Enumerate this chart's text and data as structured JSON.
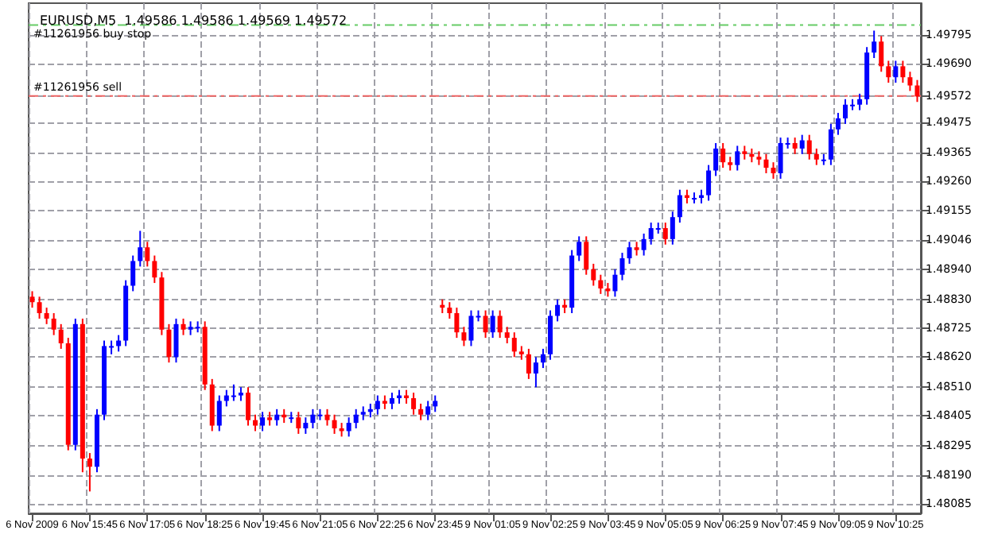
{
  "chart_data": {
    "type": "candlestick",
    "title": "EURUSD,M5  1.49586 1.49586 1.49569 1.49572",
    "categories": [
      "6 Nov 2009",
      null,
      null,
      null,
      null,
      null,
      null,
      null,
      "6 Nov 15:45",
      null,
      null,
      null,
      null,
      null,
      null,
      null,
      "6 Nov 17:05",
      null,
      null,
      null,
      null,
      null,
      null,
      null,
      "6 Nov 18:25",
      null,
      null,
      null,
      null,
      null,
      null,
      null,
      "6 Nov 19:45",
      null,
      null,
      null,
      null,
      null,
      null,
      null,
      "6 Nov 21:05",
      null,
      null,
      null,
      null,
      null,
      null,
      null,
      "6 Nov 22:25",
      null,
      null,
      null,
      null,
      null,
      null,
      null,
      "6 Nov 23:45",
      null,
      null,
      null,
      null,
      null,
      null,
      null,
      "9 Nov 01:05",
      null,
      null,
      null,
      null,
      null,
      null,
      null,
      "9 Nov 02:25",
      null,
      null,
      null,
      null,
      null,
      null,
      null,
      "9 Nov 03:45",
      null,
      null,
      null,
      null,
      null,
      null,
      null,
      "9 Nov 05:05",
      null,
      null,
      null,
      null,
      null,
      null,
      null,
      "9 Nov 06:25",
      null,
      null,
      null,
      null,
      null,
      null,
      null,
      "9 Nov 07:45",
      null,
      null,
      null,
      null,
      null,
      null,
      null,
      "9 Nov 09:05",
      null,
      null,
      null,
      null,
      null,
      null,
      null,
      "9 Nov 10:25",
      null,
      null,
      null
    ],
    "ohlc": [
      [
        1.4884,
        1.4886,
        1.488,
        1.4882
      ],
      [
        1.4882,
        1.4884,
        1.4876,
        1.4878
      ],
      [
        1.4878,
        1.488,
        1.4874,
        1.4876
      ],
      [
        1.4876,
        1.4878,
        1.487,
        1.4872
      ],
      [
        1.4872,
        1.4874,
        1.4865,
        1.4867
      ],
      [
        1.4867,
        1.4869,
        1.4828,
        1.483
      ],
      [
        1.483,
        1.4876,
        1.4828,
        1.4874
      ],
      [
        1.4874,
        1.4876,
        1.482,
        1.4825
      ],
      [
        1.4825,
        1.4827,
        1.4813,
        1.4822
      ],
      [
        1.4822,
        1.4843,
        1.482,
        1.4841
      ],
      [
        1.4841,
        1.4868,
        1.4839,
        1.4866
      ],
      [
        1.4866,
        1.4868,
        1.4863,
        1.4866
      ],
      [
        1.4866,
        1.487,
        1.4864,
        1.4868
      ],
      [
        1.4868,
        1.489,
        1.4866,
        1.4888
      ],
      [
        1.4888,
        1.4899,
        1.4886,
        1.4897
      ],
      [
        1.4897,
        1.4908,
        1.4895,
        1.4902
      ],
      [
        1.4902,
        1.4904,
        1.4895,
        1.4897
      ],
      [
        1.4897,
        1.4899,
        1.4889,
        1.4891
      ],
      [
        1.4891,
        1.4893,
        1.487,
        1.4872
      ],
      [
        1.4872,
        1.4874,
        1.486,
        1.4862
      ],
      [
        1.4862,
        1.4876,
        1.486,
        1.4874
      ],
      [
        1.4874,
        1.4876,
        1.487,
        1.4872
      ],
      [
        1.4872,
        1.4875,
        1.487,
        1.4873
      ],
      [
        1.4873,
        1.4875,
        1.4871,
        1.4873
      ],
      [
        1.4873,
        1.4875,
        1.485,
        1.4852
      ],
      [
        1.4852,
        1.4854,
        1.4835,
        1.4837
      ],
      [
        1.4837,
        1.4848,
        1.4835,
        1.4846
      ],
      [
        1.4846,
        1.485,
        1.4844,
        1.4848
      ],
      [
        1.4848,
        1.4852,
        1.4846,
        1.4848
      ],
      [
        1.4848,
        1.4851,
        1.4846,
        1.4849
      ],
      [
        1.4849,
        1.4851,
        1.4837,
        1.4839
      ],
      [
        1.4839,
        1.4841,
        1.4835,
        1.4837
      ],
      [
        1.4837,
        1.4842,
        1.4835,
        1.484
      ],
      [
        1.484,
        1.4842,
        1.4837,
        1.4839
      ],
      [
        1.4839,
        1.4843,
        1.4837,
        1.4841
      ],
      [
        1.4841,
        1.4843,
        1.4838,
        1.484
      ],
      [
        1.484,
        1.4842,
        1.4838,
        1.484
      ],
      [
        1.484,
        1.4842,
        1.4834,
        1.4836
      ],
      [
        1.4836,
        1.484,
        1.4834,
        1.4838
      ],
      [
        1.4838,
        1.4843,
        1.4836,
        1.4841
      ],
      [
        1.4841,
        1.4843,
        1.4839,
        1.4841
      ],
      [
        1.4841,
        1.4843,
        1.4837,
        1.4839
      ],
      [
        1.4839,
        1.4841,
        1.4834,
        1.4836
      ],
      [
        1.4836,
        1.4838,
        1.4833,
        1.4835
      ],
      [
        1.4835,
        1.484,
        1.4833,
        1.4838
      ],
      [
        1.4838,
        1.4843,
        1.4836,
        1.4841
      ],
      [
        1.4841,
        1.4844,
        1.4839,
        1.4842
      ],
      [
        1.4842,
        1.4845,
        1.484,
        1.4843
      ],
      [
        1.4843,
        1.4848,
        1.4841,
        1.4846
      ],
      [
        1.4846,
        1.4848,
        1.4843,
        1.4845
      ],
      [
        1.4845,
        1.4849,
        1.4843,
        1.4847
      ],
      [
        1.4847,
        1.485,
        1.4845,
        1.4848
      ],
      [
        1.4848,
        1.485,
        1.4845,
        1.4847
      ],
      [
        1.4847,
        1.4849,
        1.4841,
        1.4843
      ],
      [
        1.4843,
        1.4845,
        1.4839,
        1.4841
      ],
      [
        1.4841,
        1.4846,
        1.4839,
        1.4844
      ],
      [
        1.4844,
        1.4848,
        1.4842,
        1.4846
      ],
      [
        1.4881,
        1.4883,
        1.4878,
        1.488
      ],
      [
        1.488,
        1.4882,
        1.4876,
        1.4878
      ],
      [
        1.4878,
        1.488,
        1.4869,
        1.4871
      ],
      [
        1.4871,
        1.4873,
        1.4866,
        1.4868
      ],
      [
        1.4868,
        1.4879,
        1.4866,
        1.4877
      ],
      [
        1.4877,
        1.4879,
        1.4875,
        1.4877
      ],
      [
        1.4877,
        1.4879,
        1.4869,
        1.4871
      ],
      [
        1.4871,
        1.4879,
        1.4869,
        1.4877
      ],
      [
        1.4877,
        1.4879,
        1.4869,
        1.4871
      ],
      [
        1.4871,
        1.4873,
        1.4867,
        1.4869
      ],
      [
        1.4869,
        1.4871,
        1.4862,
        1.4864
      ],
      [
        1.4864,
        1.4866,
        1.4861,
        1.4863
      ],
      [
        1.4863,
        1.4865,
        1.4854,
        1.4856
      ],
      [
        1.4856,
        1.4862,
        1.4851,
        1.486
      ],
      [
        1.486,
        1.4865,
        1.4858,
        1.4863
      ],
      [
        1.4863,
        1.4879,
        1.4861,
        1.4877
      ],
      [
        1.4877,
        1.4883,
        1.4875,
        1.4881
      ],
      [
        1.4881,
        1.4883,
        1.4878,
        1.488
      ],
      [
        1.488,
        1.4901,
        1.4878,
        1.4899
      ],
      [
        1.4899,
        1.4906,
        1.4897,
        1.4904
      ],
      [
        1.4904,
        1.4906,
        1.4892,
        1.4894
      ],
      [
        1.4894,
        1.4896,
        1.4888,
        1.489
      ],
      [
        1.489,
        1.4892,
        1.4885,
        1.4887
      ],
      [
        1.4887,
        1.4889,
        1.4884,
        1.4886
      ],
      [
        1.4886,
        1.4894,
        1.4884,
        1.4892
      ],
      [
        1.4892,
        1.49,
        1.489,
        1.4898
      ],
      [
        1.4898,
        1.4904,
        1.4896,
        1.4902
      ],
      [
        1.4902,
        1.4904,
        1.4899,
        1.4901
      ],
      [
        1.4901,
        1.4907,
        1.4899,
        1.4905
      ],
      [
        1.4905,
        1.4911,
        1.4903,
        1.4909
      ],
      [
        1.4909,
        1.4911,
        1.4907,
        1.4909
      ],
      [
        1.4909,
        1.4911,
        1.4903,
        1.4905
      ],
      [
        1.4905,
        1.4915,
        1.4903,
        1.4913
      ],
      [
        1.4913,
        1.4923,
        1.4911,
        1.4921
      ],
      [
        1.4921,
        1.4923,
        1.4918,
        1.492
      ],
      [
        1.492,
        1.4922,
        1.4918,
        1.492
      ],
      [
        1.492,
        1.4923,
        1.4918,
        1.4921
      ],
      [
        1.4921,
        1.4932,
        1.4919,
        1.493
      ],
      [
        1.493,
        1.494,
        1.4928,
        1.4938
      ],
      [
        1.4938,
        1.494,
        1.4931,
        1.4933
      ],
      [
        1.4933,
        1.4935,
        1.493,
        1.4932
      ],
      [
        1.4932,
        1.4939,
        1.493,
        1.4937
      ],
      [
        1.4937,
        1.4939,
        1.4934,
        1.4936
      ],
      [
        1.4936,
        1.4938,
        1.4933,
        1.4935
      ],
      [
        1.4935,
        1.4937,
        1.4932,
        1.4934
      ],
      [
        1.4934,
        1.4936,
        1.4929,
        1.4931
      ],
      [
        1.4931,
        1.4933,
        1.4927,
        1.4929
      ],
      [
        1.4929,
        1.4942,
        1.4927,
        1.494
      ],
      [
        1.494,
        1.4942,
        1.4938,
        1.494
      ],
      [
        1.494,
        1.4942,
        1.4936,
        1.4938
      ],
      [
        1.4938,
        1.4943,
        1.4936,
        1.4941
      ],
      [
        1.4941,
        1.4943,
        1.4934,
        1.4936
      ],
      [
        1.4936,
        1.4938,
        1.4932,
        1.4934
      ],
      [
        1.4934,
        1.4936,
        1.4932,
        1.4934
      ],
      [
        1.4934,
        1.4947,
        1.4932,
        1.4945
      ],
      [
        1.4945,
        1.4951,
        1.4943,
        1.4949
      ],
      [
        1.4949,
        1.4956,
        1.4947,
        1.4954
      ],
      [
        1.4954,
        1.4956,
        1.4952,
        1.4954
      ],
      [
        1.4954,
        1.4958,
        1.4952,
        1.4956
      ],
      [
        1.4956,
        1.4975,
        1.4954,
        1.4973
      ],
      [
        1.4973,
        1.4981,
        1.4971,
        1.4977
      ],
      [
        1.4977,
        1.4979,
        1.4966,
        1.4968
      ],
      [
        1.4968,
        1.497,
        1.4962,
        1.4964
      ],
      [
        1.4964,
        1.497,
        1.4962,
        1.4968
      ],
      [
        1.4968,
        1.497,
        1.4962,
        1.4964
      ],
      [
        1.4964,
        1.4966,
        1.4959,
        1.4961
      ],
      [
        1.4961,
        1.4963,
        1.4955,
        1.4957
      ]
    ],
    "colors": [
      "#ff0000",
      "#ff0000",
      "#ff0000",
      "#ff0000",
      "#ff0000",
      "#ff0000",
      "#0000ff",
      "#ff0000",
      "#ff0000",
      "#0000ff",
      "#0000ff",
      "#0000ff",
      "#0000ff",
      "#0000ff",
      "#0000ff",
      "#0000ff",
      "#ff0000",
      "#ff0000",
      "#ff0000",
      "#ff0000",
      "#0000ff",
      "#ff0000",
      "#0000ff",
      "#0000ff",
      "#ff0000",
      "#ff0000",
      "#0000ff",
      "#0000ff",
      "#0000ff",
      "#0000ff",
      "#ff0000",
      "#ff0000",
      "#0000ff",
      "#ff0000",
      "#0000ff",
      "#ff0000",
      "#0000ff",
      "#ff0000",
      "#0000ff",
      "#0000ff",
      "#0000ff",
      "#ff0000",
      "#ff0000",
      "#ff0000",
      "#0000ff",
      "#0000ff",
      "#0000ff",
      "#0000ff",
      "#0000ff",
      "#ff0000",
      "#0000ff",
      "#0000ff",
      "#ff0000",
      "#ff0000",
      "#ff0000",
      "#0000ff",
      "#0000ff",
      "#ff0000",
      "#ff0000",
      "#ff0000",
      "#ff0000",
      "#0000ff",
      "#0000ff",
      "#ff0000",
      "#0000ff",
      "#ff0000",
      "#ff0000",
      "#ff0000",
      "#ff0000",
      "#ff0000",
      "#0000ff",
      "#0000ff",
      "#0000ff",
      "#0000ff",
      "#ff0000",
      "#0000ff",
      "#0000ff",
      "#ff0000",
      "#ff0000",
      "#ff0000",
      "#ff0000",
      "#0000ff",
      "#0000ff",
      "#0000ff",
      "#ff0000",
      "#0000ff",
      "#0000ff",
      "#0000ff",
      "#ff0000",
      "#0000ff",
      "#0000ff",
      "#ff0000",
      "#0000ff",
      "#0000ff",
      "#0000ff",
      "#0000ff",
      "#ff0000",
      "#ff0000",
      "#0000ff",
      "#ff0000",
      "#ff0000",
      "#ff0000",
      "#ff0000",
      "#ff0000",
      "#0000ff",
      "#0000ff",
      "#ff0000",
      "#0000ff",
      "#ff0000",
      "#ff0000",
      "#0000ff",
      "#0000ff",
      "#0000ff",
      "#0000ff",
      "#0000ff",
      "#0000ff",
      "#0000ff",
      "#0000ff",
      "#ff0000",
      "#ff0000",
      "#0000ff",
      "#ff0000",
      "#ff0000",
      "#ff0000"
    ],
    "ylim": [
      1.4805,
      1.4991
    ],
    "yticks": [
      1.48085,
      {
        "value": 1.4819,
        "label": "1.48190"
      },
      1.48295,
      1.48405,
      {
        "value": 1.4851,
        "label": "1.48510"
      },
      {
        "value": 1.4862,
        "label": "1.48620"
      },
      1.48725,
      {
        "value": 1.4883,
        "label": "1.48830"
      },
      {
        "value": 1.4894,
        "label": "1.48940"
      },
      1.49046,
      1.49155,
      {
        "value": 1.4926,
        "label": "1.49260"
      },
      1.49365,
      1.49475,
      1.49572,
      {
        "value": 1.4969,
        "label": "1.49690"
      },
      1.49795
    ],
    "ref_lines": [
      {
        "axis": "y",
        "value": 1.4983,
        "label": "#11261956 buy stop",
        "color": "#66cc66",
        "line_style": "dashed"
      },
      {
        "axis": "y",
        "value": 1.49572,
        "label": "#11261956 sell",
        "color": "#ee6666",
        "line_style": "dashed"
      }
    ],
    "grid": true
  }
}
